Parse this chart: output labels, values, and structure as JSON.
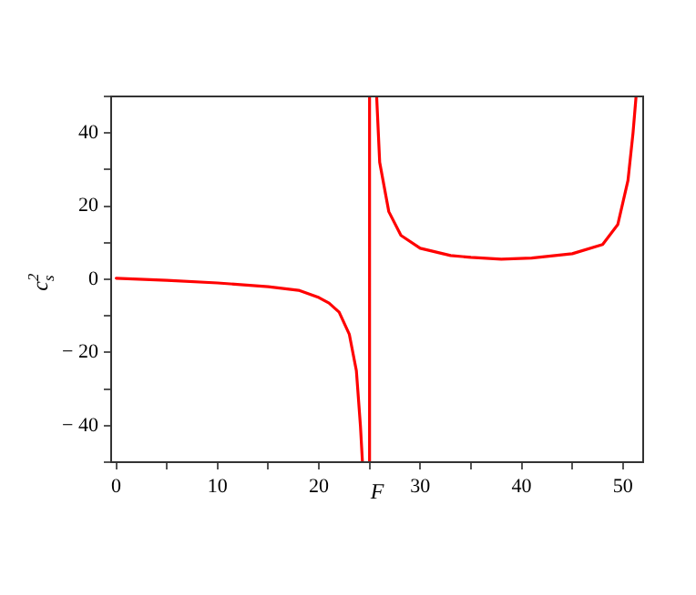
{
  "chart_data": {
    "type": "line",
    "xlabel": "F",
    "ylabel": "c$_{s}$$^{2}$",
    "series": [
      {
        "color": "#ff0000",
        "x": [
          0,
          5,
          10,
          15,
          18,
          20,
          21,
          22,
          23,
          23.7,
          24.1,
          24.3,
          null,
          25.0,
          25.0,
          null,
          25.7,
          26,
          26.9,
          28.1,
          30,
          33,
          35,
          38,
          41,
          45,
          48,
          49.5,
          50.5,
          51,
          51.3
        ],
        "values": [
          0.3,
          -0.3,
          -1,
          -2,
          -3,
          -5,
          -6.5,
          -9,
          -15,
          -25,
          -40,
          -50,
          null,
          -50,
          50,
          null,
          50,
          32,
          18.5,
          12,
          8.5,
          6.5,
          6,
          5.5,
          5.8,
          7,
          9.5,
          15,
          27,
          40,
          50
        ]
      }
    ],
    "xlim": [
      -0.5,
      52
    ],
    "ylim": [
      -50,
      50
    ],
    "xticks": [
      0,
      {
        "value": 5,
        "label": null
      },
      10,
      {
        "value": 15,
        "label": null
      },
      20,
      {
        "value": 25,
        "label": null
      },
      30,
      {
        "value": 35,
        "label": null
      },
      40,
      {
        "value": 45,
        "label": null
      },
      50
    ],
    "yticks": [
      {
        "value": -50,
        "label": null
      },
      -40,
      {
        "value": -30,
        "label": null
      },
      -20,
      {
        "value": -10,
        "label": null
      },
      0,
      {
        "value": 10,
        "label": null
      },
      20,
      {
        "value": 30,
        "label": null
      },
      40,
      {
        "value": 50,
        "label": null
      }
    ],
    "grid": false,
    "legend": false,
    "marker": "none",
    "line_style": "solid"
  }
}
